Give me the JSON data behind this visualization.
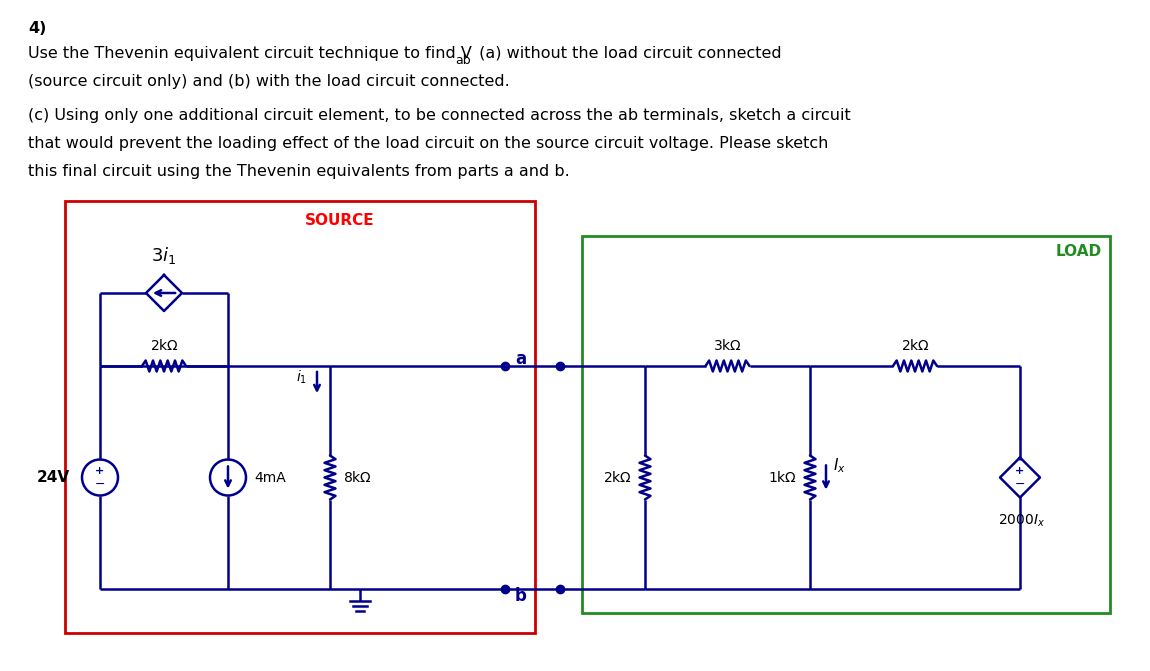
{
  "title_num": "4)",
  "source_label": "SOURCE",
  "load_label": "LOAD",
  "source_box_color": "#cc0000",
  "load_box_color": "#228B22",
  "circuit_color": "#00008B",
  "bg_color": "#ffffff",
  "fig_width": 11.5,
  "fig_height": 6.71,
  "text_color": "#000000"
}
